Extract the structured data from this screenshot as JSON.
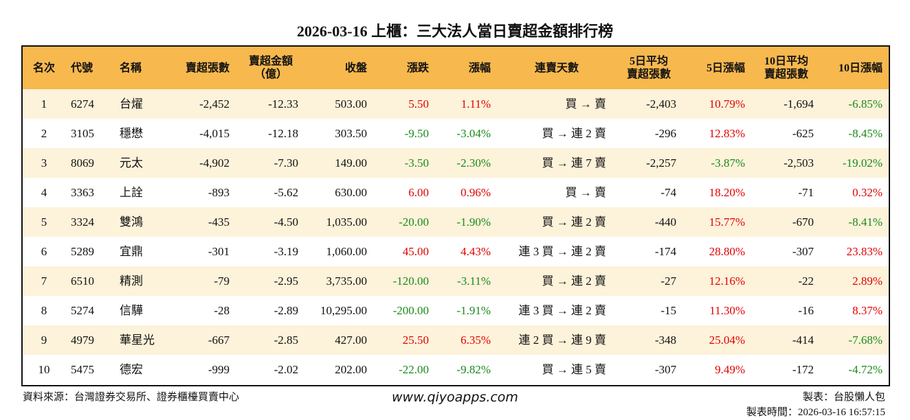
{
  "title": "2026-03-16 上櫃：三大法人當日賣超金額排行榜",
  "table": {
    "header": [
      "名次",
      "代號",
      "名稱",
      "賣超張數",
      [
        "賣超金額",
        "（億）"
      ],
      "收盤",
      "漲跌",
      "漲幅",
      "連賣天數",
      [
        "5日平均",
        "賣超張數"
      ],
      "5日漲幅",
      [
        "10日平均",
        "賣超張數"
      ],
      "10日漲幅"
    ],
    "rows": [
      [
        "1",
        "6274",
        "台燿",
        "-2,452",
        "-12.33",
        "503.00",
        "5.50",
        "1.11%",
        "買 → 賣",
        "-2,403",
        "10.79%",
        "-1,694",
        "-6.85%"
      ],
      [
        "2",
        "3105",
        "穩懋",
        "-4,015",
        "-12.18",
        "303.50",
        "-9.50",
        "-3.04%",
        "買 → 連 2 賣",
        "-296",
        "12.83%",
        "-625",
        "-8.45%"
      ],
      [
        "3",
        "8069",
        "元太",
        "-4,902",
        "-7.30",
        "149.00",
        "-3.50",
        "-2.30%",
        "買 → 連 7 賣",
        "-2,257",
        "-3.87%",
        "-2,503",
        "-19.02%"
      ],
      [
        "4",
        "3363",
        "上詮",
        "-893",
        "-5.62",
        "630.00",
        "6.00",
        "0.96%",
        "買 → 賣",
        "-74",
        "18.20%",
        "-71",
        "0.32%"
      ],
      [
        "5",
        "3324",
        "雙鴻",
        "-435",
        "-4.50",
        "1,035.00",
        "-20.00",
        "-1.90%",
        "買 → 連 2 賣",
        "-440",
        "15.77%",
        "-670",
        "-8.41%"
      ],
      [
        "6",
        "5289",
        "宜鼎",
        "-301",
        "-3.19",
        "1,060.00",
        "45.00",
        "4.43%",
        "連 3 買 → 連 2 賣",
        "-174",
        "28.80%",
        "-307",
        "23.83%"
      ],
      [
        "7",
        "6510",
        "精測",
        "-79",
        "-2.95",
        "3,735.00",
        "-120.00",
        "-3.11%",
        "買 → 連 2 賣",
        "-27",
        "12.16%",
        "-22",
        "2.89%"
      ],
      [
        "8",
        "5274",
        "信驊",
        "-28",
        "-2.89",
        "10,295.00",
        "-200.00",
        "-1.91%",
        "連 3 買 → 連 2 賣",
        "-15",
        "11.30%",
        "-16",
        "8.37%"
      ],
      [
        "9",
        "4979",
        "華星光",
        "-667",
        "-2.85",
        "427.00",
        "25.50",
        "6.35%",
        "連 2 買 → 連 9 賣",
        "-348",
        "25.04%",
        "-414",
        "-7.68%"
      ],
      [
        "10",
        "5475",
        "德宏",
        "-999",
        "-2.02",
        "202.00",
        "-22.00",
        "-9.82%",
        "買 → 連 5 賣",
        "-307",
        "9.49%",
        "-172",
        "-4.72%"
      ]
    ]
  },
  "footer": {
    "source": "資料來源：台灣證券交易所、證券櫃檯買賣中心",
    "website": "www.qiyoapps.com",
    "author": "製表：台股懶人包",
    "time": "製表時間：2026-03-16 16:57:15"
  }
}
